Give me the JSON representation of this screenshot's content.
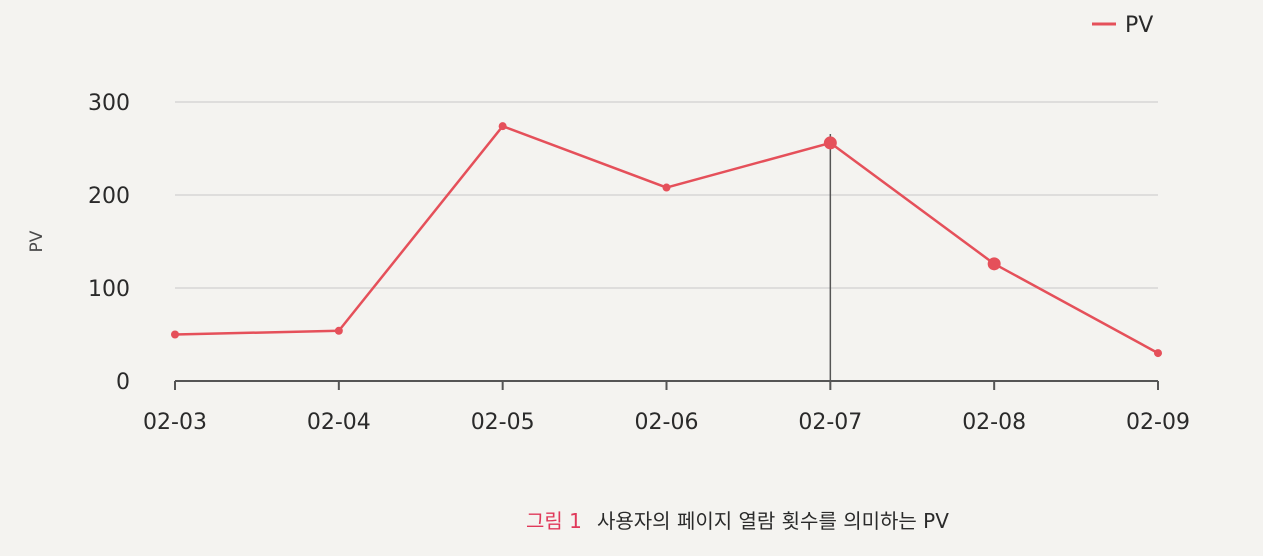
{
  "chart_data": {
    "type": "line",
    "categories": [
      "02-03",
      "02-04",
      "02-05",
      "02-06",
      "02-07",
      "02-08",
      "02-09"
    ],
    "series": [
      {
        "name": "PV",
        "values": [
          50,
          54,
          274,
          208,
          256,
          126,
          30
        ],
        "color": "#e5505a"
      }
    ],
    "xlabel": "",
    "ylabel": "PV",
    "ylim": [
      0,
      300
    ],
    "yticks": [
      0,
      100,
      200,
      300
    ],
    "grid": true,
    "legend_position": "top-right",
    "highlighted_category": "02-07",
    "highlighted_points": [
      "02-07",
      "02-08"
    ]
  },
  "caption": {
    "prefix": "그림 1",
    "text": "사용자의 페이지 열람 횟수를 의미하는 PV"
  }
}
